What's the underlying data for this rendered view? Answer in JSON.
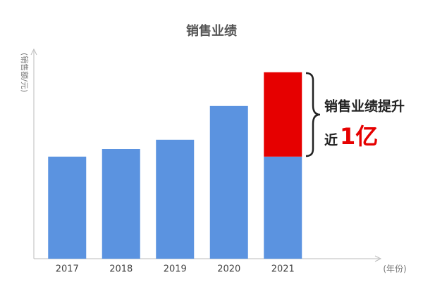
{
  "chart_data": {
    "type": "stacked-bar",
    "title": "销售业绩",
    "y_label": "(销售额/元)",
    "x_label": "(年份)",
    "categories": [
      "2017",
      "2018",
      "2019",
      "2020",
      "2021"
    ],
    "series": [
      {
        "color": "#5b93e0",
        "values": [
          1.21,
          1.3,
          1.41,
          1.81,
          1.21
        ]
      },
      {
        "color": "#e60000",
        "values": [
          null,
          null,
          null,
          null,
          1.0
        ]
      }
    ],
    "ylim": [
      0,
      2.44
    ],
    "grid": false,
    "annotation": {
      "line1": "销售业绩提升",
      "prefix": "近",
      "highlight": "1亿",
      "highlight_color": "#e60000"
    }
  }
}
